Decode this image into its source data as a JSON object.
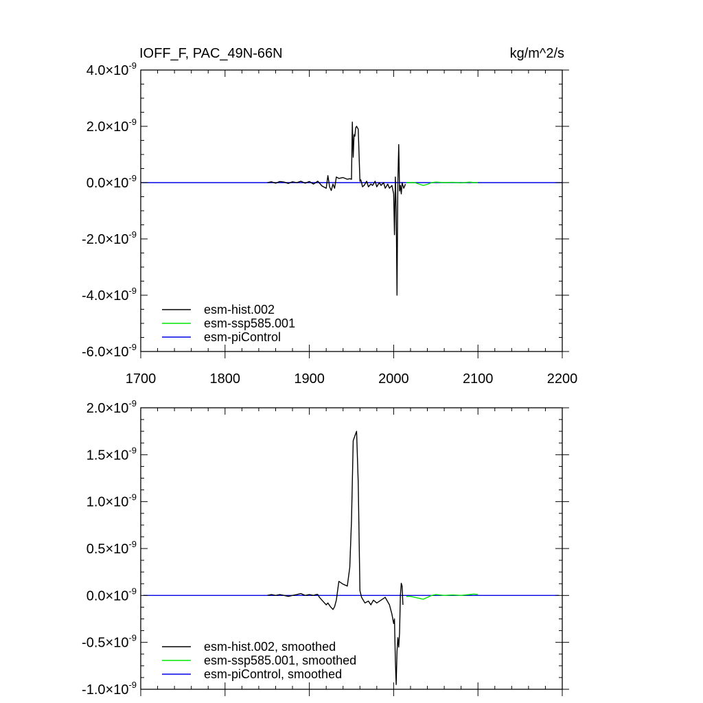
{
  "chart_data": [
    {
      "type": "line",
      "title": "IOFF_F, PAC_49N-66N",
      "units": "kg/m^2/s",
      "exponent_suffix": "×10",
      "exponent": "-9",
      "xlim": [
        1700,
        2200
      ],
      "ylim": [
        -6.0,
        4.0
      ],
      "x_ticks": [
        1700,
        1800,
        1900,
        2000,
        2100,
        2200
      ],
      "y_ticks": [
        -6.0,
        -4.0,
        -2.0,
        0.0,
        2.0,
        4.0
      ],
      "y_tick_labels": [
        "-6.0",
        "-4.0",
        "-2.0",
        "0.0",
        "2.0",
        "4.0"
      ],
      "legend_position": "bottom-left",
      "series": [
        {
          "name": "esm-hist.002",
          "color": "#000000",
          "x": [
            1850,
            1855,
            1860,
            1865,
            1870,
            1875,
            1880,
            1885,
            1890,
            1895,
            1900,
            1905,
            1910,
            1915,
            1920,
            1922,
            1924,
            1926,
            1928,
            1930,
            1932,
            1935,
            1940,
            1945,
            1948,
            1950,
            1951,
            1952,
            1953,
            1954,
            1955,
            1956,
            1958,
            1960,
            1961,
            1962,
            1963,
            1965,
            1968,
            1970,
            1973,
            1975,
            1978,
            1980,
            1983,
            1985,
            1988,
            1990,
            1993,
            1995,
            1998,
            2000,
            2001,
            2002,
            2003,
            2004,
            2005,
            2006,
            2007,
            2008,
            2009,
            2010,
            2012,
            2014
          ],
          "y": [
            0.0,
            0.03,
            -0.02,
            0.04,
            0.02,
            -0.03,
            0.03,
            0.0,
            0.05,
            -0.02,
            0.04,
            -0.05,
            0.05,
            -0.12,
            -0.2,
            0.25,
            -0.15,
            -0.28,
            -0.05,
            -0.2,
            0.2,
            0.15,
            0.18,
            0.12,
            0.14,
            0.12,
            2.15,
            0.9,
            1.7,
            1.65,
            1.95,
            2.0,
            1.9,
            0.05,
            0.1,
            0.0,
            -0.15,
            -0.1,
            0.05,
            -0.15,
            -0.05,
            -0.1,
            0.05,
            -0.15,
            0.0,
            -0.1,
            0.0,
            -0.2,
            -0.05,
            -0.2,
            -0.1,
            -0.4,
            -1.85,
            0.2,
            -1.0,
            -4.0,
            0.0,
            1.35,
            -0.3,
            -0.1,
            -0.4,
            0.0,
            -0.2,
            -0.05
          ]
        },
        {
          "name": "esm-ssp585.001",
          "color": "#00e600",
          "x": [
            2015,
            2025,
            2030,
            2035,
            2040,
            2045,
            2050,
            2060,
            2070,
            2080,
            2090,
            2095,
            2100
          ],
          "y": [
            0.0,
            0.0,
            -0.05,
            -0.1,
            -0.06,
            0.0,
            0.02,
            0.0,
            0.01,
            -0.01,
            0.02,
            0.0,
            0.0
          ]
        },
        {
          "name": "esm-piControl",
          "color": "#0000e6",
          "x": [
            1700,
            2200
          ],
          "y": [
            0.0,
            0.0
          ]
        }
      ]
    },
    {
      "type": "line",
      "title": "",
      "exponent_suffix": "×10",
      "exponent": "-9",
      "xlim": [
        1700,
        2200
      ],
      "ylim": [
        -1.0,
        2.0
      ],
      "x_ticks": [
        1700,
        1800,
        1900,
        2000,
        2100,
        2200
      ],
      "y_ticks": [
        -1.0,
        -0.5,
        0.0,
        0.5,
        1.0,
        1.5,
        2.0
      ],
      "y_tick_labels": [
        "-1.0",
        "-0.5",
        "0.0",
        "0.5",
        "1.0",
        "1.5",
        "2.0"
      ],
      "legend_position": "bottom-left",
      "series": [
        {
          "name": "esm-hist.002, smoothed",
          "color": "#000000",
          "x": [
            1850,
            1855,
            1860,
            1865,
            1870,
            1875,
            1880,
            1885,
            1890,
            1895,
            1900,
            1905,
            1908,
            1910,
            1912,
            1915,
            1918,
            1920,
            1922,
            1925,
            1928,
            1930,
            1932,
            1935,
            1940,
            1945,
            1948,
            1950,
            1952,
            1954,
            1956,
            1958,
            1960,
            1962,
            1964,
            1966,
            1970,
            1973,
            1976,
            1980,
            1985,
            1990,
            1995,
            1998,
            2000,
            2001,
            2002,
            2003,
            2004,
            2005,
            2006,
            2007,
            2008,
            2009,
            2010,
            2011
          ],
          "y": [
            0.0,
            0.01,
            0.0,
            0.01,
            0.0,
            -0.01,
            0.0,
            0.01,
            0.02,
            0.0,
            0.01,
            0.0,
            0.01,
            0.01,
            -0.02,
            -0.05,
            -0.08,
            -0.1,
            -0.08,
            -0.12,
            -0.15,
            -0.12,
            -0.05,
            0.15,
            0.12,
            0.1,
            0.3,
            0.8,
            1.65,
            1.7,
            1.75,
            1.2,
            0.05,
            -0.02,
            -0.05,
            -0.08,
            -0.06,
            -0.1,
            -0.05,
            -0.08,
            -0.05,
            -0.02,
            -0.1,
            -0.2,
            -0.3,
            -0.25,
            -0.7,
            -0.95,
            -0.6,
            -0.45,
            -0.55,
            -0.4,
            0.0,
            0.13,
            0.1,
            -0.1
          ]
        },
        {
          "name": "esm-ssp585.001, smoothed",
          "color": "#00e600",
          "x": [
            2015,
            2020,
            2025,
            2030,
            2035,
            2040,
            2045,
            2050,
            2060,
            2070,
            2080,
            2090,
            2095,
            2100
          ],
          "y": [
            -0.01,
            -0.01,
            -0.02,
            -0.03,
            -0.04,
            -0.02,
            0.0,
            0.01,
            0.0,
            0.005,
            0.0,
            0.01,
            0.015,
            0.01
          ]
        },
        {
          "name": "esm-piControl, smoothed",
          "color": "#0000e6",
          "x": [
            1703,
            2196
          ],
          "y": [
            0.0,
            0.0
          ]
        }
      ]
    }
  ]
}
